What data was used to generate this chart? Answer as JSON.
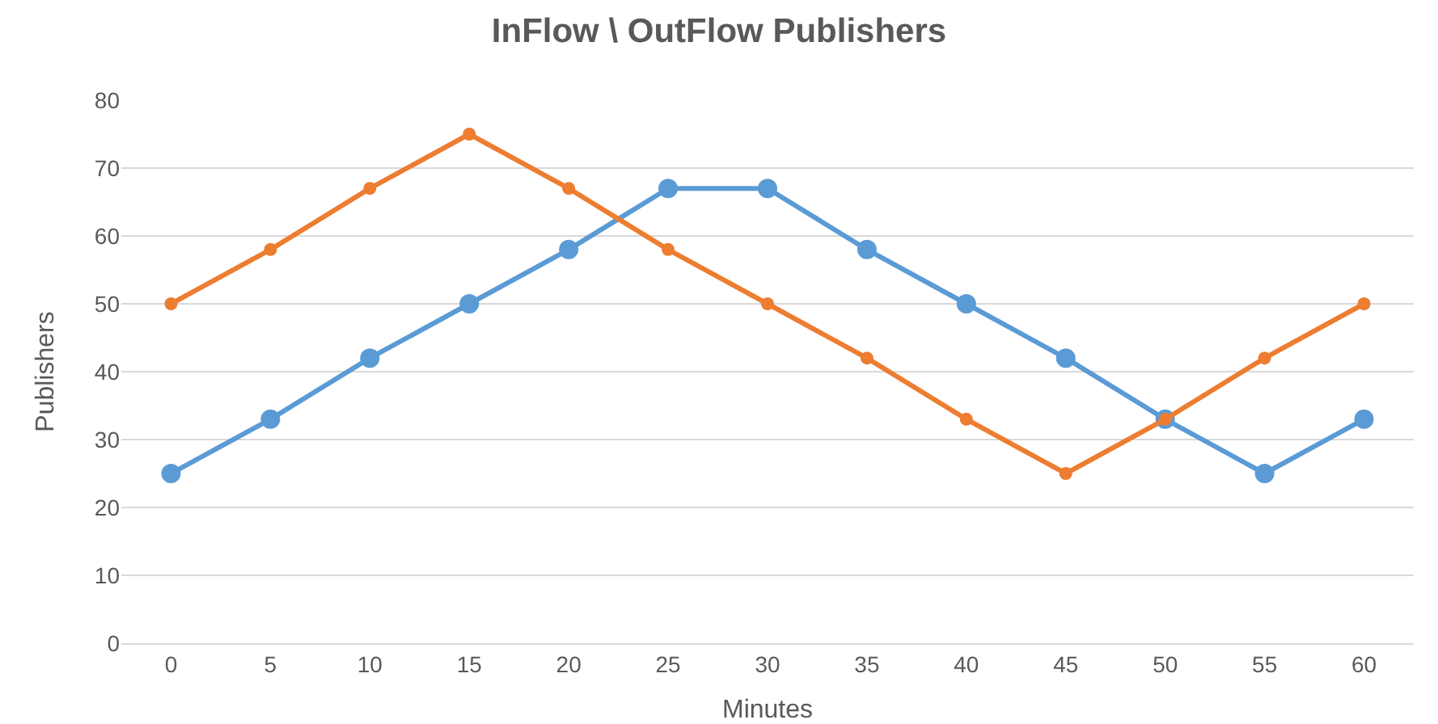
{
  "chart_data": {
    "type": "line",
    "title": "InFlow \\ OutFlow Publishers",
    "xlabel": "Minutes",
    "ylabel": "Publishers",
    "categories": [
      "0",
      "5",
      "10",
      "15",
      "20",
      "25",
      "30",
      "35",
      "40",
      "45",
      "50",
      "55",
      "60"
    ],
    "series": [
      {
        "color": "#5b9bd5",
        "values": [
          25,
          33,
          42,
          50,
          58,
          67,
          67,
          58,
          50,
          42,
          33,
          25,
          33
        ]
      },
      {
        "color": "#ed7d31",
        "values": [
          50,
          58,
          67,
          75,
          67,
          58,
          50,
          42,
          33,
          25,
          33,
          42,
          50
        ]
      }
    ],
    "ylim": [
      0,
      80
    ],
    "yticks": [
      0,
      10,
      20,
      30,
      40,
      50,
      60,
      70,
      80
    ],
    "grid": "y",
    "marker": "circle",
    "line_style": "solid"
  }
}
